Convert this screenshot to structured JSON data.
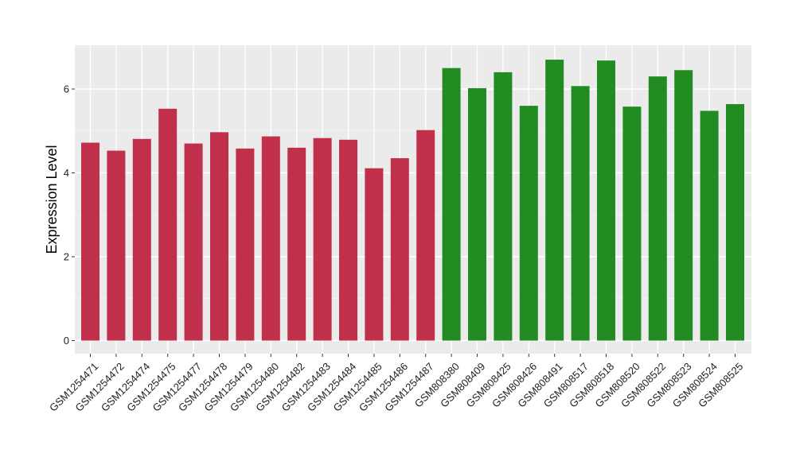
{
  "chart_data": {
    "type": "bar",
    "title": "",
    "xlabel": "",
    "ylabel": "Expression Level",
    "ylim": [
      0,
      7
    ],
    "yticks": [
      0,
      2,
      4,
      6
    ],
    "grid": true,
    "background": "#ebebeb",
    "categories": [
      "GSM1254471",
      "GSM1254472",
      "GSM1254474",
      "GSM1254475",
      "GSM1254477",
      "GSM1254478",
      "GSM1254479",
      "GSM1254480",
      "GSM1254482",
      "GSM1254483",
      "GSM1254484",
      "GSM1254485",
      "GSM1254486",
      "GSM1254487",
      "GSM808380",
      "GSM808409",
      "GSM808425",
      "GSM808426",
      "GSM808491",
      "GSM808517",
      "GSM808518",
      "GSM808520",
      "GSM808522",
      "GSM808523",
      "GSM808524",
      "GSM808525"
    ],
    "values": [
      4.72,
      4.53,
      4.81,
      5.53,
      4.7,
      4.97,
      4.58,
      4.87,
      4.6,
      4.83,
      4.79,
      4.11,
      4.35,
      5.02,
      6.5,
      6.02,
      6.4,
      5.6,
      6.7,
      6.07,
      6.68,
      5.58,
      6.3,
      6.45,
      5.48,
      5.64
    ],
    "bar_colors": [
      "#c0304a",
      "#c0304a",
      "#c0304a",
      "#c0304a",
      "#c0304a",
      "#c0304a",
      "#c0304a",
      "#c0304a",
      "#c0304a",
      "#c0304a",
      "#c0304a",
      "#c0304a",
      "#c0304a",
      "#c0304a",
      "#228b22",
      "#228b22",
      "#228b22",
      "#228b22",
      "#228b22",
      "#228b22",
      "#228b22",
      "#228b22",
      "#228b22",
      "#228b22",
      "#228b22",
      "#228b22"
    ]
  }
}
